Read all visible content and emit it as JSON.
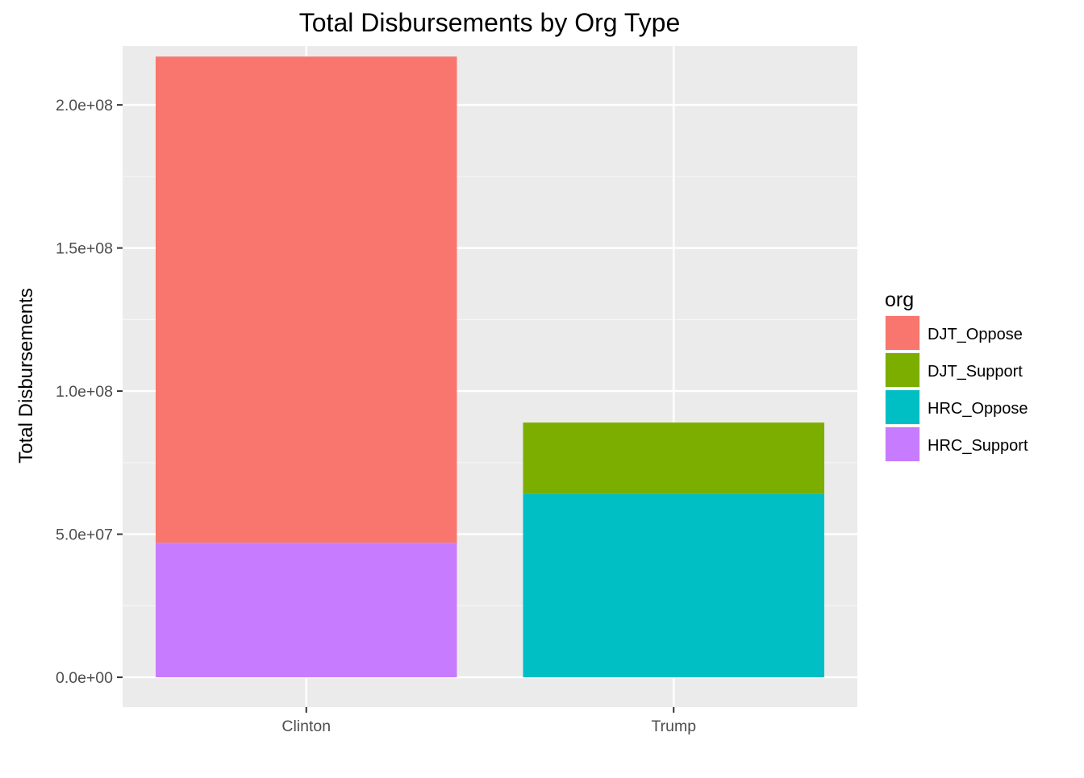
{
  "chart_data": {
    "type": "bar",
    "stacked": true,
    "title": "Total Disbursements by Org Type",
    "xlabel": "",
    "ylabel": "Total Disbursements",
    "categories": [
      "Clinton",
      "Trump"
    ],
    "ylim": [
      -10400000,
      220600000
    ],
    "yticks": [
      {
        "value": 0,
        "label": "0.0e+00"
      },
      {
        "value": 50000000,
        "label": "5.0e+07"
      },
      {
        "value": 100000000,
        "label": "1.0e+08"
      },
      {
        "value": 150000000,
        "label": "1.5e+08"
      },
      {
        "value": 200000000,
        "label": "2.0e+08"
      }
    ],
    "legend": {
      "title": "org",
      "position": "right"
    },
    "series": [
      {
        "name": "DJT_Oppose",
        "color": "#F8766D",
        "values": [
          169900000,
          0
        ]
      },
      {
        "name": "DJT_Support",
        "color": "#7CAE00",
        "values": [
          0,
          25000000
        ]
      },
      {
        "name": "HRC_Oppose",
        "color": "#00BFC4",
        "values": [
          0,
          64000000
        ]
      },
      {
        "name": "HRC_Support",
        "color": "#C77CFF",
        "values": [
          47000000,
          0
        ]
      }
    ],
    "stack_order_bottom_to_top": [
      "HRC_Support",
      "HRC_Oppose",
      "DJT_Support",
      "DJT_Oppose"
    ],
    "grid": true,
    "panel_background": "#EBEBEB"
  }
}
